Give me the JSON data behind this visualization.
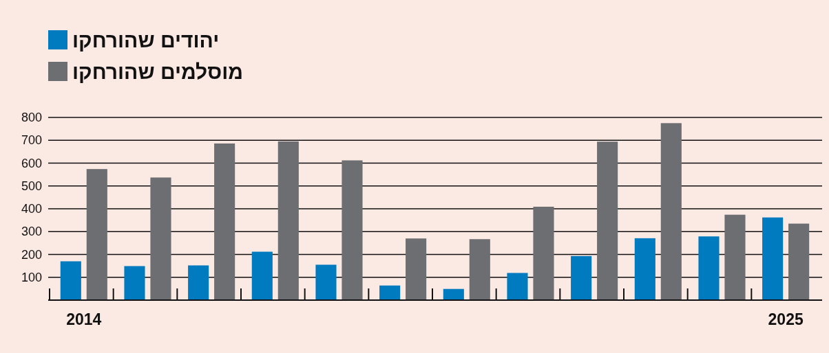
{
  "chart_data": {
    "type": "bar",
    "categories": [
      "2014",
      null,
      null,
      null,
      null,
      null,
      null,
      null,
      null,
      null,
      null,
      "2025"
    ],
    "series": [
      {
        "name": "יהודים שהורחקו",
        "color": "#007bc0",
        "values": [
          170,
          149,
          152,
          212,
          155,
          64,
          49,
          119,
          193,
          271,
          279,
          362
        ]
      },
      {
        "name": "מוסלמים שהורחקו",
        "color": "#6d6e71",
        "values": [
          574,
          537,
          686,
          695,
          612,
          270,
          267,
          409,
          694,
          775,
          374,
          335
        ]
      }
    ],
    "ylim": [
      0,
      800
    ],
    "yticks": [
      100,
      200,
      300,
      400,
      500,
      600,
      700,
      800
    ],
    "grid": "y",
    "legend": "top left"
  }
}
